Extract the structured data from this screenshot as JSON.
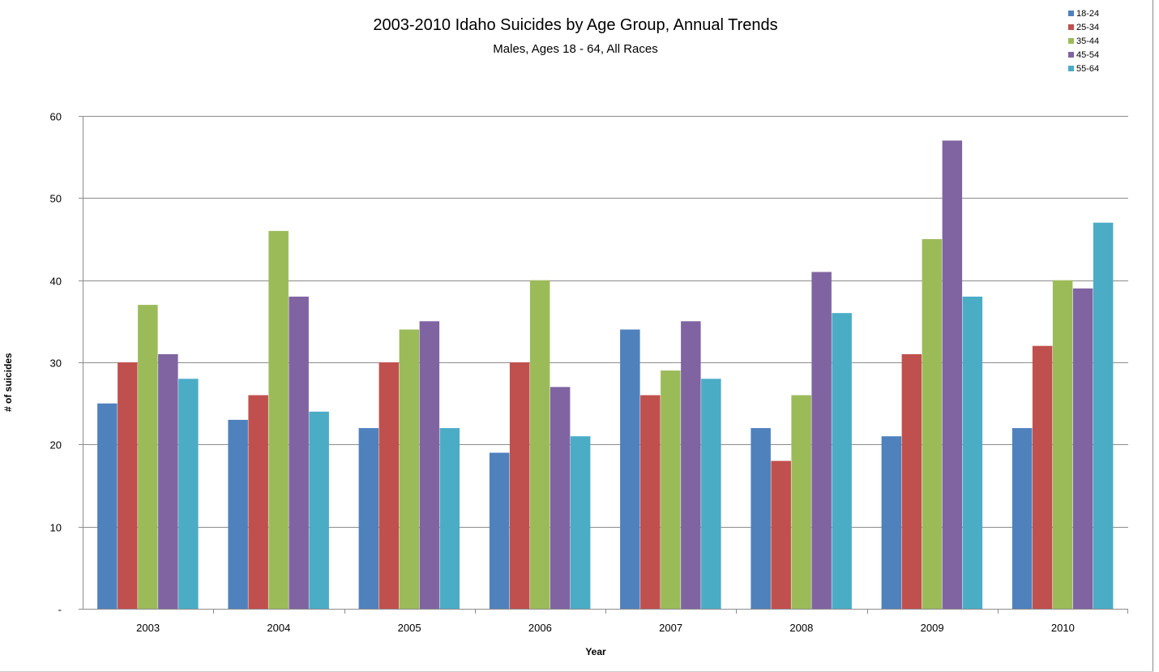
{
  "chart_data": {
    "type": "bar",
    "title": "2003-2010 Idaho Suicides by Age Group, Annual Trends",
    "subtitle": "Males, Ages 18 - 64, All Races",
    "xlabel": "Year",
    "ylabel": "# of suicides",
    "ylim": [
      0,
      60
    ],
    "yticks": [
      0,
      10,
      20,
      30,
      40,
      50,
      60
    ],
    "ytick_labels": [
      "-",
      "10",
      "20",
      "30",
      "40",
      "50",
      "60"
    ],
    "grid": true,
    "legend_position": "top-right",
    "categories": [
      "2003",
      "2004",
      "2005",
      "2006",
      "2007",
      "2008",
      "2009",
      "2010"
    ],
    "series": [
      {
        "name": "18-24",
        "color": "#4F81BD",
        "values": [
          25,
          23,
          22,
          19,
          34,
          22,
          21,
          22
        ]
      },
      {
        "name": "25-34",
        "color": "#C0504D",
        "values": [
          30,
          26,
          30,
          30,
          26,
          18,
          31,
          32
        ]
      },
      {
        "name": "35-44",
        "color": "#9BBB59",
        "values": [
          37,
          46,
          34,
          40,
          29,
          26,
          45,
          40
        ]
      },
      {
        "name": "45-54",
        "color": "#8064A2",
        "values": [
          31,
          38,
          35,
          27,
          35,
          41,
          57,
          39
        ]
      },
      {
        "name": "55-64",
        "color": "#4BACC6",
        "values": [
          28,
          24,
          22,
          21,
          28,
          36,
          38,
          47
        ]
      }
    ]
  }
}
